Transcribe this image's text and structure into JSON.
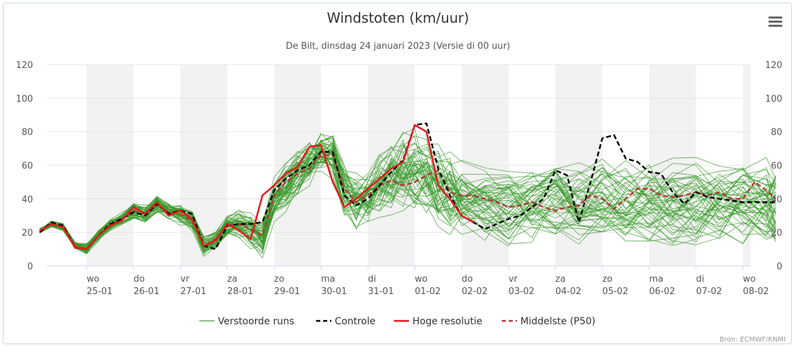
{
  "chart_data": {
    "type": "line",
    "title": "Windstoten (km/uur)",
    "subtitle": "De Bilt, dinsdag 24 januari 2023 (Versie di 00 uur)",
    "credit": "Bron: ECMWF/KNMI",
    "ylim": [
      0,
      120
    ],
    "y_ticks": [
      0,
      20,
      40,
      60,
      80,
      100,
      120
    ],
    "x_range_days": [
      0,
      15.7
    ],
    "grid": true,
    "legend_position": "bottom-center",
    "day_ticks": [
      {
        "day": "wo",
        "date": "25-01"
      },
      {
        "day": "do",
        "date": "26-01"
      },
      {
        "day": "vr",
        "date": "27-01"
      },
      {
        "day": "za",
        "date": "28-01"
      },
      {
        "day": "zo",
        "date": "29-01"
      },
      {
        "day": "ma",
        "date": "30-01"
      },
      {
        "day": "di",
        "date": "31-01"
      },
      {
        "day": "wo",
        "date": "01-02"
      },
      {
        "day": "do",
        "date": "02-02"
      },
      {
        "day": "vr",
        "date": "03-02"
      },
      {
        "day": "za",
        "date": "04-02"
      },
      {
        "day": "zo",
        "date": "05-02"
      },
      {
        "day": "ma",
        "date": "06-02"
      },
      {
        "day": "di",
        "date": "07-02"
      },
      {
        "day": "wo",
        "date": "08-02"
      }
    ],
    "series": [
      {
        "name": "Verstoorde runs",
        "color": "#3a9a2c",
        "style": "ensemble",
        "base_x": [
          0,
          0.25,
          0.5,
          0.75,
          1.0,
          1.25,
          1.5,
          1.75,
          2.0,
          2.25,
          2.5,
          2.75,
          3.0,
          3.25,
          3.5,
          3.75,
          4.0,
          4.25,
          4.5,
          4.75,
          5.0,
          5.25,
          5.5,
          5.75,
          6.0,
          6.25,
          6.5,
          6.75,
          7.0,
          7.25,
          7.5,
          7.75,
          8.0,
          8.25,
          8.5,
          8.75,
          9.0,
          9.5,
          10.0,
          10.5,
          11.0,
          11.5,
          12.0,
          12.5,
          13.0,
          13.5,
          14.0,
          14.5,
          15.0,
          15.5,
          15.7
        ],
        "base_y": [
          21,
          25,
          23,
          12,
          10,
          18,
          24,
          28,
          33,
          31,
          37,
          33,
          31,
          27,
          12,
          15,
          24,
          25,
          21,
          16,
          40,
          48,
          55,
          60,
          67,
          65,
          45,
          37,
          40,
          48,
          53,
          57,
          55,
          50,
          45,
          42,
          40,
          38,
          36,
          34,
          38,
          36,
          42,
          40,
          40,
          38,
          38,
          37,
          38,
          37,
          36
        ],
        "spread_y": [
          2,
          2,
          2,
          2,
          3,
          3,
          3,
          3,
          4,
          4,
          4,
          4,
          5,
          5,
          5,
          5,
          6,
          7,
          8,
          9,
          10,
          11,
          12,
          12,
          12,
          13,
          14,
          15,
          15,
          16,
          17,
          18,
          19,
          19,
          20,
          20,
          20,
          20,
          20,
          21,
          21,
          21,
          21,
          22,
          22,
          22,
          22,
          22,
          22,
          22,
          22
        ],
        "members": 50
      },
      {
        "name": "Controle",
        "color": "#000000",
        "style": "dash",
        "x": [
          0,
          0.25,
          0.5,
          0.75,
          1.0,
          1.25,
          1.5,
          1.75,
          2.0,
          2.25,
          2.5,
          2.75,
          3.0,
          3.25,
          3.5,
          3.75,
          4.0,
          4.25,
          4.5,
          4.75,
          5.0,
          5.25,
          5.5,
          5.75,
          6.0,
          6.25,
          6.5,
          6.75,
          7.0,
          7.25,
          7.5,
          7.75,
          8.0,
          8.25,
          8.5,
          8.75,
          9.0,
          9.5,
          10.0,
          10.25,
          10.5,
          10.75,
          11.0,
          11.25,
          11.5,
          11.75,
          12.0,
          12.25,
          12.5,
          12.75,
          13.0,
          13.25,
          13.5,
          13.75,
          14.0,
          14.25,
          14.5,
          14.75,
          15.0,
          15.25,
          15.5,
          15.7
        ],
        "y": [
          20,
          26,
          24,
          11,
          10,
          18,
          25,
          28,
          32,
          30,
          37,
          31,
          33,
          31,
          12,
          10,
          24,
          25,
          25,
          26,
          45,
          52,
          57,
          60,
          68,
          68,
          42,
          36,
          40,
          48,
          56,
          63,
          84,
          85,
          58,
          42,
          30,
          22,
          28,
          30,
          35,
          40,
          57,
          54,
          26,
          50,
          76,
          78,
          64,
          62,
          56,
          55,
          44,
          37,
          44,
          41,
          40,
          39,
          38,
          38,
          38,
          38
        ]
      },
      {
        "name": "Hoge resolutie",
        "color": "#e8161b",
        "style": "solid",
        "x": [
          0,
          0.25,
          0.5,
          0.75,
          1.0,
          1.25,
          1.5,
          1.75,
          2.0,
          2.25,
          2.5,
          2.75,
          3.0,
          3.25,
          3.5,
          3.75,
          4.0,
          4.25,
          4.5,
          4.75,
          5.0,
          5.25,
          5.5,
          5.75,
          6.0,
          6.25,
          6.5,
          6.75,
          7.0,
          7.25,
          7.5,
          7.75,
          8.0,
          8.25,
          8.5,
          8.75,
          9.0,
          9.25
        ],
        "y": [
          21,
          25,
          23,
          11,
          10,
          18,
          24,
          27,
          35,
          31,
          38,
          30,
          33,
          28,
          12,
          15,
          25,
          21,
          16,
          42,
          48,
          55,
          59,
          71,
          72,
          50,
          35,
          40,
          46,
          52,
          58,
          62,
          84,
          80,
          48,
          40,
          30,
          26
        ]
      },
      {
        "name": "Middelste (P50)",
        "color": "#b23a3a",
        "style": "dash",
        "x": [
          0,
          0.25,
          0.5,
          0.75,
          1.0,
          1.25,
          1.5,
          1.75,
          2.0,
          2.25,
          2.5,
          2.75,
          3.0,
          3.25,
          3.5,
          3.75,
          4.0,
          4.25,
          4.5,
          4.75,
          5.0,
          5.25,
          5.5,
          5.75,
          6.0,
          6.25,
          6.5,
          6.75,
          7.0,
          7.25,
          7.5,
          7.75,
          8.0,
          8.25,
          8.5,
          8.75,
          9.0,
          9.25,
          9.5,
          9.75,
          10.0,
          10.25,
          10.5,
          10.75,
          11.0,
          11.25,
          11.5,
          11.75,
          12.0,
          12.25,
          12.5,
          12.75,
          13.0,
          13.25,
          13.5,
          13.75,
          14.0,
          14.25,
          14.5,
          14.75,
          15.0,
          15.25,
          15.5,
          15.7
        ],
        "y": [
          21,
          25,
          23,
          12,
          10,
          18,
          24,
          28,
          33,
          31,
          37,
          32,
          31,
          27,
          12,
          16,
          24,
          25,
          22,
          18,
          42,
          50,
          55,
          58,
          66,
          66,
          46,
          38,
          42,
          48,
          51,
          48,
          50,
          54,
          57,
          44,
          42,
          42,
          40,
          38,
          35,
          36,
          38,
          35,
          33,
          35,
          36,
          42,
          40,
          34,
          40,
          46,
          46,
          42,
          41,
          42,
          44,
          42,
          44,
          40,
          40,
          50,
          45,
          40
        ]
      }
    ]
  },
  "menu": {
    "icon": "hamburger-icon"
  },
  "chrome": {
    "frame_color": "#c9d6e3",
    "band_color": "#f2f2f2",
    "grid_color": "#e6e6e6"
  }
}
